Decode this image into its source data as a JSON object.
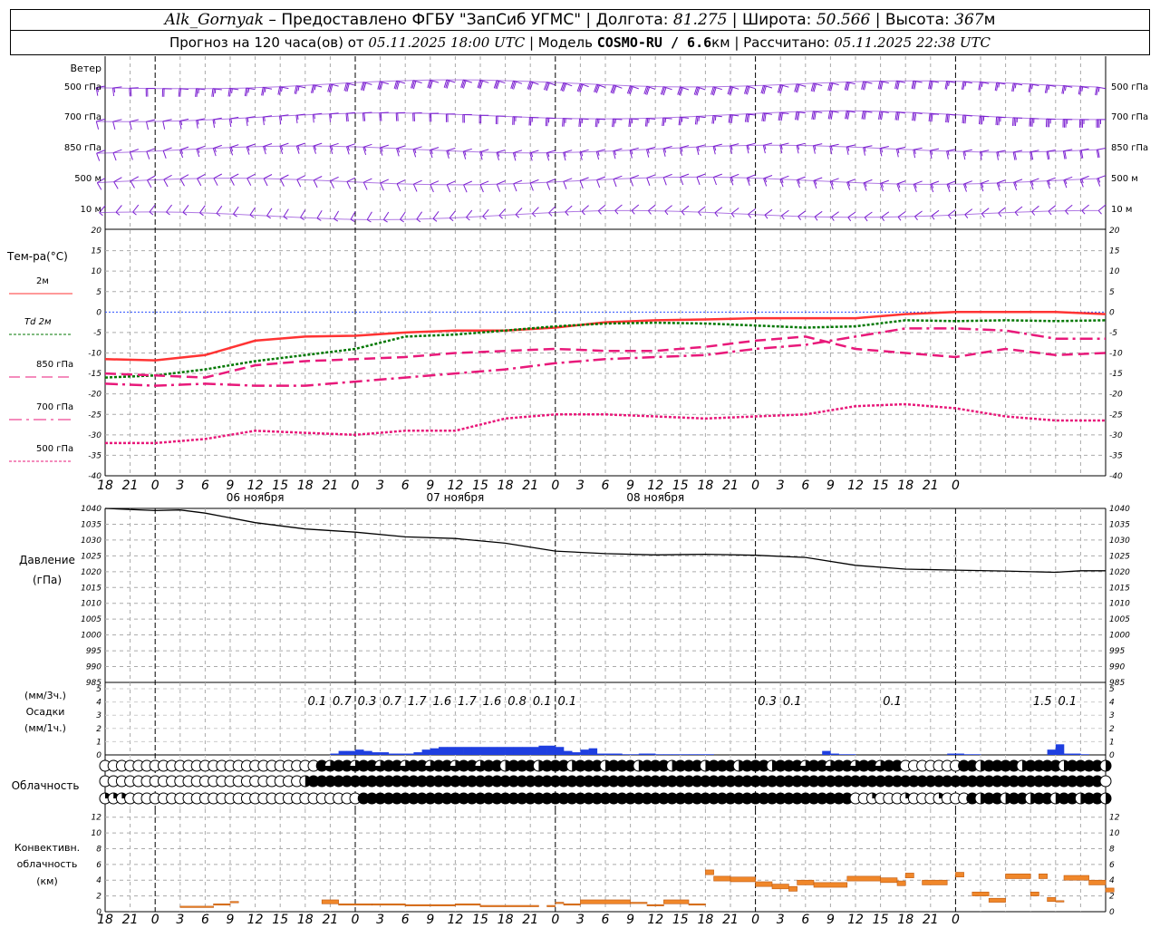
{
  "header": {
    "station": "Alk_Gornyak",
    "dash": " – ",
    "provider": "Предоставлено ФГБУ \"ЗапСиб УГМС\"",
    "lon_label": "Долгота:",
    "lon": "81.275",
    "lat_label": "Широта:",
    "lat": "50.566",
    "alt_label": "Высота:",
    "alt": "367",
    "alt_unit": "м",
    "forecast_prefix": "Прогноз на 120 часа(ов) от",
    "forecast_start": "05.11.2025 18:00 UTC",
    "model_label": "Модель",
    "model": "COSMO-RU / 6.6",
    "model_unit": "км",
    "calc_label": "Рассчитано:",
    "calc_time": "05.11.2025 22:38 UTC"
  },
  "wind": {
    "title": "Ветер",
    "levels": [
      "500 гПа",
      "700 гПа",
      "850 гПа",
      "500 м",
      "10  м"
    ],
    "color": "#7b1fd1"
  },
  "temp": {
    "title": "Тем-ра(°C)",
    "legend": [
      {
        "name": "2м",
        "color": "#ff3333",
        "style": "solid"
      },
      {
        "name": "Td  2м",
        "color": "#007700",
        "style": "dot"
      },
      {
        "name": "850 гПа",
        "color": "#e8197a",
        "style": "dash"
      },
      {
        "name": "700 гПа",
        "color": "#e8197a",
        "style": "dashdot"
      },
      {
        "name": "500 гПа",
        "color": "#e8197a",
        "style": "dot"
      }
    ]
  },
  "pressure": {
    "title1": "Давление",
    "title2": "(гПа)"
  },
  "precip": {
    "title_a": "(мм/3ч.)",
    "title_b": "Осадки",
    "title_c": "(мм/1ч.)",
    "amounts": [
      "0.1",
      "0.7",
      "0.3",
      "0.7",
      "1.7",
      "1.6",
      "1.7",
      "1.6",
      "0.8",
      "0.1",
      "0.1",
      "0.3",
      "0.1",
      "0.1",
      "1.5",
      "0.1"
    ]
  },
  "cloud": {
    "title": "Облачность"
  },
  "conv": {
    "title1": "Конвективн.",
    "title2": "облачность",
    "title3": "(км)"
  },
  "time_axis": {
    "hour_labels": [
      "18",
      "21",
      "0",
      "3",
      "6",
      "9",
      "12",
      "15",
      "18",
      "21",
      "0",
      "3",
      "6",
      "9",
      "12",
      "15",
      "18",
      "21",
      "0",
      "3",
      "6",
      "9",
      "12",
      "15",
      "18",
      "21",
      "0",
      "3",
      "6",
      "9",
      "12",
      "15",
      "18",
      "21",
      "0"
    ],
    "day_labels": [
      "06 ноября",
      "07 ноября",
      "08 ноября"
    ]
  },
  "chart_data": [
    {
      "type": "line",
      "title": "Тем-ра(°C)",
      "x_unit": "hours from 05.11.2025 18:00 UTC",
      "ylim": [
        -40,
        20
      ],
      "yticks": [
        20,
        15,
        10,
        5,
        0,
        -5,
        -10,
        -15,
        -20,
        -25,
        -30,
        -35,
        -40
      ],
      "x": [
        0,
        6,
        12,
        18,
        24,
        30,
        36,
        42,
        48,
        54,
        60,
        66,
        72,
        78,
        84,
        90,
        96,
        102,
        108,
        114,
        120
      ],
      "series": [
        {
          "name": "2м",
          "values": [
            -11.5,
            -11.8,
            -10.5,
            -7,
            -6,
            -5.8,
            -5,
            -4.5,
            -4.5,
            -3.8,
            -2.5,
            -2,
            -1.8,
            -1.5,
            -1.5,
            -1.5,
            -0.5,
            0,
            0,
            0,
            -0.5
          ]
        },
        {
          "name": "Td  2м",
          "values": [
            -16,
            -15.5,
            -14,
            -12,
            -10.5,
            -9,
            -6,
            -5.5,
            -4.5,
            -3.5,
            -2.8,
            -2.6,
            -2.8,
            -3.3,
            -3.8,
            -3.5,
            -2,
            -2.2,
            -2,
            -2.2,
            -2
          ]
        },
        {
          "name": "850 гПа",
          "values": [
            -15,
            -15.5,
            -16,
            -13,
            -12,
            -11.5,
            -11,
            -10,
            -9.5,
            -9,
            -9.5,
            -9.5,
            -8.5,
            -7,
            -6,
            -9,
            -10,
            -11,
            -9,
            -10.5,
            -10
          ]
        },
        {
          "name": "700 гПа",
          "values": [
            -17.5,
            -18,
            -17.5,
            -18,
            -18,
            -17,
            -16,
            -15,
            -14,
            -12.5,
            -11.5,
            -11,
            -10.5,
            -9,
            -8,
            -6,
            -4,
            -4,
            -4.5,
            -6.5,
            -6.5
          ]
        },
        {
          "name": "500 гПа",
          "values": [
            -32,
            -32,
            -31,
            -29,
            -29.5,
            -30,
            -29,
            -29,
            -26,
            -25,
            -25,
            -25.5,
            -26,
            -25.5,
            -25,
            -23,
            -22.5,
            -23.5,
            -25.5,
            -26.5,
            -26.5
          ]
        }
      ]
    },
    {
      "type": "line",
      "title": "Давление",
      "x_unit": "hours from 05.11.2025 18:00 UTC",
      "ylim": [
        985,
        1040
      ],
      "yticks": [
        1040,
        1035,
        1030,
        1025,
        1020,
        1015,
        1010,
        1005,
        1000,
        995,
        990,
        985
      ],
      "x": [
        0,
        6,
        9,
        12,
        18,
        24,
        30,
        36,
        42,
        48,
        54,
        60,
        66,
        72,
        78,
        84,
        90,
        96,
        102,
        108,
        114,
        117,
        120
      ],
      "series": [
        {
          "name": "Давление",
          "values": [
            1040,
            1039.3,
            1039.5,
            1038.5,
            1035.5,
            1033.5,
            1032.5,
            1031,
            1030.5,
            1029,
            1026.5,
            1025.7,
            1025.3,
            1025.5,
            1025.2,
            1024.5,
            1022,
            1020.8,
            1020.5,
            1020.2,
            1019.8,
            1020.3,
            1020.3
          ]
        }
      ]
    },
    {
      "type": "bar",
      "title": "Осадки",
      "x_unit": "hours from 05.11.2025 18:00 UTC",
      "ylim": [
        0,
        5
      ],
      "yticks": [
        5,
        4,
        3,
        2,
        1,
        0
      ],
      "x": [
        27,
        28,
        29,
        30,
        31,
        32,
        33,
        34,
        35,
        36,
        37,
        38,
        39,
        40,
        41,
        42,
        43,
        44,
        45,
        46,
        47,
        48,
        49,
        50,
        51,
        52,
        53,
        54,
        55,
        56,
        57,
        58,
        59,
        60,
        61,
        62,
        63,
        64,
        65,
        66,
        67,
        68,
        69,
        70,
        71,
        72,
        86,
        87,
        88,
        89,
        101,
        102,
        103,
        104,
        113,
        114,
        115,
        116,
        117
      ],
      "values": [
        0.1,
        0.3,
        0.3,
        0.4,
        0.3,
        0.2,
        0.2,
        0.1,
        0.1,
        0.1,
        0.2,
        0.4,
        0.5,
        0.6,
        0.6,
        0.6,
        0.6,
        0.6,
        0.6,
        0.6,
        0.6,
        0.6,
        0.6,
        0.6,
        0.6,
        0.7,
        0.7,
        0.6,
        0.3,
        0.2,
        0.4,
        0.5,
        0.1,
        0.1,
        0.1,
        0.05,
        0.05,
        0.1,
        0.1,
        0.05,
        0.05,
        0.05,
        0.05,
        0.05,
        0.05,
        0.05,
        0.3,
        0.1,
        0.05,
        0.05,
        0.1,
        0.1,
        0.05,
        0.05,
        0.4,
        0.8,
        0.1,
        0.1,
        0.05
      ]
    },
    {
      "type": "bar",
      "title": "Конвективн. облачность (км)",
      "x_unit": "hours from 05.11.2025 18:00 UTC",
      "ylim": [
        0,
        13
      ],
      "yticks": [
        12,
        10,
        8,
        6,
        4,
        2,
        0
      ],
      "segments": [
        [
          9,
          13,
          0.7
        ],
        [
          13,
          15,
          1.0
        ],
        [
          15,
          16,
          1.3
        ],
        [
          26,
          28,
          1.5
        ],
        [
          28,
          32,
          1.0
        ],
        [
          32,
          36,
          1.0
        ],
        [
          36,
          42,
          0.9
        ],
        [
          42,
          45,
          1.0
        ],
        [
          45,
          52,
          0.8
        ],
        [
          53,
          54,
          0.8
        ],
        [
          54,
          55,
          1.2
        ],
        [
          55,
          57,
          1.0
        ],
        [
          57,
          63,
          1.5
        ],
        [
          63,
          65,
          1.2
        ],
        [
          65,
          67,
          0.9
        ],
        [
          67,
          70,
          1.5
        ],
        [
          70,
          72,
          1.0
        ],
        [
          72,
          73,
          5.3
        ],
        [
          73,
          75,
          4.5
        ],
        [
          75,
          78,
          4.4
        ],
        [
          78,
          80,
          3.8
        ],
        [
          80,
          82,
          3.5
        ],
        [
          82,
          83,
          3.2
        ],
        [
          83,
          85,
          4.0
        ],
        [
          85,
          89,
          3.7
        ],
        [
          89,
          93,
          4.5
        ],
        [
          93,
          95,
          4.3
        ],
        [
          95,
          96,
          3.9
        ],
        [
          96,
          97,
          4.9
        ],
        [
          98,
          101,
          4.0
        ],
        [
          102,
          103,
          5.0
        ],
        [
          104,
          106,
          2.5
        ],
        [
          106,
          108,
          1.7
        ],
        [
          108,
          111,
          4.8
        ],
        [
          111,
          112,
          2.5
        ],
        [
          112,
          113,
          4.8
        ],
        [
          113,
          114,
          1.8
        ],
        [
          114,
          115,
          1.4
        ],
        [
          115,
          118,
          4.6
        ],
        [
          118,
          120,
          4.0
        ],
        [
          120,
          121,
          3.0
        ]
      ]
    }
  ]
}
